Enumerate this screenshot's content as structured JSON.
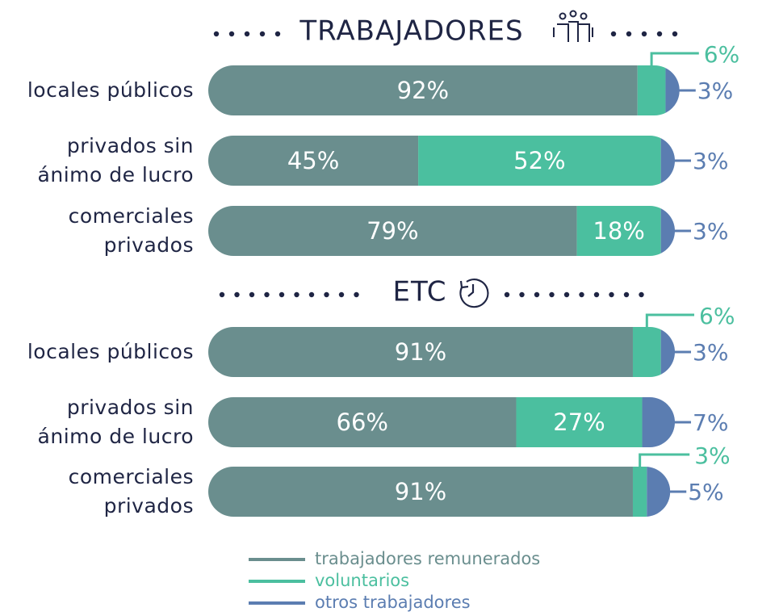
{
  "chart_data": [
    {
      "type": "stacked-bar-horizontal",
      "title": "TRABAJADORES",
      "categories": [
        "locales públicos",
        "privados sin\nánimo de lucro",
        "comerciales\nprivados"
      ],
      "xlim": [
        0,
        100
      ],
      "series": [
        {
          "name": "trabajadores remunerados",
          "color": "#6a8e8e",
          "values": [
            92,
            45,
            79
          ],
          "value_labels": [
            "92%",
            "45%",
            "79%"
          ]
        },
        {
          "name": "voluntarios",
          "color": "#4bbf9f",
          "values": [
            6,
            52,
            18
          ],
          "value_labels": [
            "6%",
            "52%",
            "18%"
          ]
        },
        {
          "name": "otros trabajadores",
          "color": "#5b7db1",
          "values": [
            3,
            3,
            3
          ],
          "value_labels": [
            "3%",
            "3%",
            "3%"
          ]
        }
      ]
    },
    {
      "type": "stacked-bar-horizontal",
      "title": "ETC",
      "categories": [
        "locales públicos",
        "privados sin\nánimo de lucro",
        "comerciales\nprivados"
      ],
      "xlim": [
        0,
        100
      ],
      "series": [
        {
          "color": "#6a8e8e",
          "values": [
            91,
            66,
            91
          ],
          "value_labels": [
            "91%",
            "66%",
            "91%"
          ]
        },
        {
          "color": "#4bbf9f",
          "values": [
            6,
            27,
            3
          ],
          "value_labels": [
            "6%",
            "27%",
            "3%"
          ]
        },
        {
          "color": "#5b7db1",
          "values": [
            3,
            7,
            5
          ],
          "value_labels": [
            "3%",
            "7%",
            "5%"
          ]
        }
      ]
    }
  ]
}
